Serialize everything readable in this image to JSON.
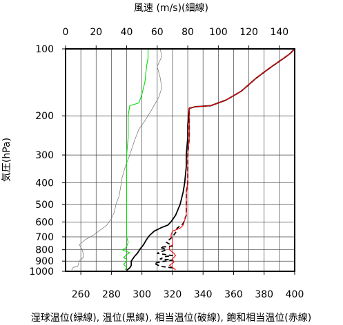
{
  "chart_data": {
    "type": "line",
    "title": "",
    "top_axis": {
      "label": "風速 (m/s)(細線)",
      "ticks": [
        0,
        20,
        40,
        60,
        80,
        100,
        120,
        140
      ],
      "range": [
        0,
        150
      ]
    },
    "bottom_axis": {
      "label": "湿球温位(緑線), 温位(黒線), 相当温位(破線), 飽和相当温位(赤線)",
      "ticks": [
        260,
        280,
        300,
        320,
        340,
        360,
        380,
        400
      ],
      "range": [
        250,
        400
      ]
    },
    "y_axis": {
      "label": "気圧(hPa)",
      "scale": "log",
      "inverted": true,
      "range": [
        100,
        1000
      ],
      "ticks": [
        100,
        200,
        300,
        400,
        500,
        600,
        700,
        800,
        900,
        1000
      ]
    },
    "grid": true,
    "series": [
      {
        "color": "#808080",
        "axis": "top",
        "style": "thin",
        "points": [
          [
            4,
            985
          ],
          [
            5,
            960
          ],
          [
            8,
            950
          ],
          [
            9,
            900
          ],
          [
            12,
            860
          ],
          [
            11,
            800
          ],
          [
            9,
            760
          ],
          [
            13,
            720
          ],
          [
            18,
            690
          ],
          [
            23,
            650
          ],
          [
            27,
            620
          ],
          [
            30,
            580
          ],
          [
            32,
            540
          ],
          [
            33,
            500
          ],
          [
            35,
            460
          ],
          [
            36,
            420
          ],
          [
            37,
            380
          ],
          [
            39,
            340
          ],
          [
            42,
            300
          ],
          [
            45,
            260
          ],
          [
            48,
            230
          ],
          [
            52,
            210
          ],
          [
            56,
            190
          ],
          [
            61,
            165
          ],
          [
            63,
            150
          ],
          [
            62,
            135
          ],
          [
            60,
            120
          ],
          [
            62,
            112
          ],
          [
            63,
            108
          ],
          [
            62,
            100
          ]
        ]
      },
      {
        "color": "#00dd00",
        "axis": "bottom",
        "points": [
          [
            289,
            985
          ],
          [
            290,
            960
          ],
          [
            288,
            930
          ],
          [
            290,
            900
          ],
          [
            290,
            880
          ],
          [
            288,
            870
          ],
          [
            290,
            840
          ],
          [
            292,
            825
          ],
          [
            289,
            810
          ],
          [
            287,
            800
          ],
          [
            289,
            790
          ],
          [
            290,
            775
          ],
          [
            291,
            740
          ],
          [
            290,
            700
          ],
          [
            290,
            650
          ],
          [
            290,
            600
          ],
          [
            290,
            400
          ],
          [
            290,
            300
          ],
          [
            291,
            250
          ],
          [
            291,
            200
          ],
          [
            292,
            180
          ],
          [
            298,
            175
          ],
          [
            300,
            160
          ],
          [
            302,
            140
          ],
          [
            303,
            120
          ],
          [
            304,
            110
          ],
          [
            304,
            100
          ]
        ]
      },
      {
        "color": "#000000",
        "axis": "bottom",
        "points": [
          [
            290,
            990
          ],
          [
            292,
            965
          ],
          [
            293,
            940
          ],
          [
            293,
            900
          ],
          [
            295,
            860
          ],
          [
            297,
            830
          ],
          [
            299,
            790
          ],
          [
            301,
            760
          ],
          [
            303,
            720
          ],
          [
            305,
            690
          ],
          [
            308,
            660
          ],
          [
            313,
            635
          ],
          [
            317,
            620
          ],
          [
            319,
            600
          ],
          [
            322,
            560
          ],
          [
            325,
            500
          ],
          [
            327,
            440
          ],
          [
            328,
            400
          ],
          [
            329,
            340
          ],
          [
            329,
            300
          ],
          [
            330,
            250
          ],
          [
            330,
            220
          ],
          [
            331,
            185
          ],
          [
            335,
            182
          ],
          [
            345,
            180
          ],
          [
            355,
            170
          ],
          [
            365,
            155
          ],
          [
            375,
            135
          ],
          [
            385,
            120
          ],
          [
            393,
            110
          ],
          [
            397,
            105
          ],
          [
            400,
            100
          ]
        ]
      },
      {
        "color": "#000000",
        "axis": "bottom",
        "dashed": true,
        "points": [
          [
            320,
            965
          ],
          [
            312,
            950
          ],
          [
            308,
            920
          ],
          [
            315,
            900
          ],
          [
            320,
            890
          ],
          [
            312,
            880
          ],
          [
            315,
            860
          ],
          [
            320,
            850
          ],
          [
            310,
            830
          ],
          [
            316,
            800
          ],
          [
            312,
            780
          ],
          [
            320,
            770
          ],
          [
            316,
            740
          ],
          [
            320,
            700
          ],
          [
            322,
            670
          ],
          [
            323,
            640
          ],
          [
            327,
            610
          ],
          [
            329,
            560
          ],
          [
            329,
            500
          ],
          [
            329,
            440
          ],
          [
            330,
            400
          ],
          [
            330,
            300
          ],
          [
            331,
            250
          ],
          [
            331,
            200
          ],
          [
            331,
            185
          ],
          [
            335,
            182
          ],
          [
            345,
            180
          ],
          [
            355,
            170
          ],
          [
            365,
            155
          ],
          [
            375,
            135
          ],
          [
            385,
            120
          ],
          [
            393,
            110
          ],
          [
            397,
            105
          ],
          [
            400,
            100
          ]
        ]
      },
      {
        "color": "#ff0000",
        "axis": "bottom",
        "points": [
          [
            322,
            985
          ],
          [
            320,
            960
          ],
          [
            318,
            940
          ],
          [
            321,
            910
          ],
          [
            320,
            880
          ],
          [
            322,
            850
          ],
          [
            321,
            830
          ],
          [
            318,
            800
          ],
          [
            318,
            780
          ],
          [
            320,
            760
          ],
          [
            320,
            720
          ],
          [
            319,
            690
          ],
          [
            320,
            660
          ],
          [
            325,
            640
          ],
          [
            327,
            620
          ],
          [
            329,
            560
          ],
          [
            329,
            500
          ],
          [
            329,
            440
          ],
          [
            330,
            400
          ],
          [
            330,
            300
          ],
          [
            331,
            250
          ],
          [
            331,
            200
          ],
          [
            331,
            185
          ],
          [
            335,
            182
          ],
          [
            345,
            180
          ],
          [
            355,
            170
          ],
          [
            365,
            155
          ],
          [
            375,
            135
          ],
          [
            385,
            120
          ],
          [
            393,
            110
          ],
          [
            397,
            105
          ],
          [
            400,
            100
          ]
        ]
      }
    ]
  }
}
